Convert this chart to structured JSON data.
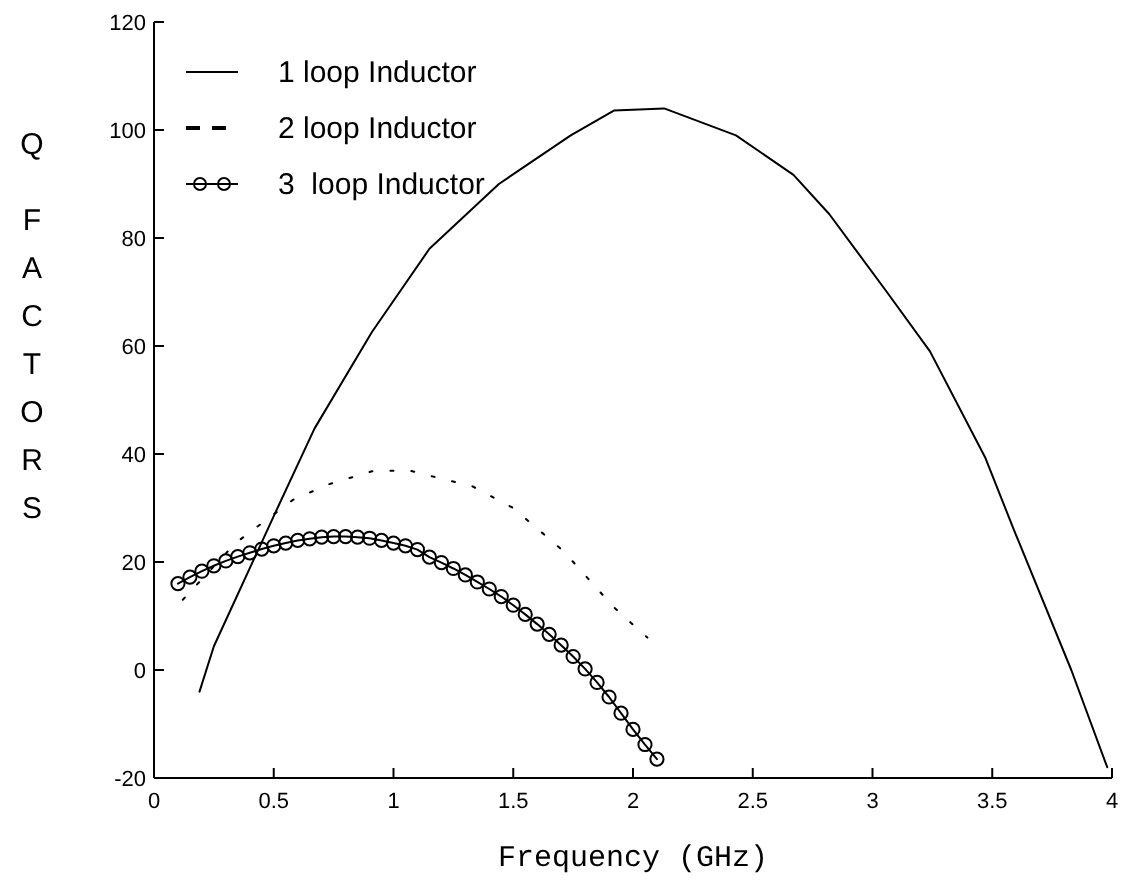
{
  "chart_data": {
    "type": "line",
    "xlabel": "Frequency (GHz)",
    "ylabel": "Q FACTORS",
    "xlim": [
      0,
      4
    ],
    "xticks": [
      0,
      0.5,
      1,
      1.5,
      2,
      2.5,
      3,
      3.5,
      4
    ],
    "ylim": [
      -20,
      120
    ],
    "yticks": [
      -20,
      0,
      20,
      40,
      60,
      80,
      100,
      120
    ],
    "grid": false,
    "legend": "top left",
    "series": [
      {
        "name": "1 loop Inductor",
        "color": "#000000",
        "line_style": "solid",
        "marker": "none",
        "x": [
          0.19,
          0.25,
          0.5,
          0.67,
          0.91,
          1.15,
          1.44,
          1.74,
          1.92,
          2.13,
          2.43,
          2.67,
          2.82,
          3.06,
          3.24,
          3.47,
          3.59,
          3.83,
          3.98
        ],
        "values": [
          -4,
          4.4,
          28.5,
          44.7,
          62.6,
          78,
          90,
          99,
          103.6,
          104,
          99,
          91.7,
          84.4,
          70,
          59,
          39.4,
          26,
          0,
          -18
        ]
      },
      {
        "name": "2 loop Inductor",
        "color": "#000000",
        "line_style": "dotted",
        "marker": "none",
        "x": [
          0.12,
          0.34,
          0.58,
          0.73,
          0.91,
          1.06,
          1.33,
          1.5,
          1.71,
          1.92,
          2.06
        ],
        "values": [
          13,
          23.5,
          31.5,
          34.4,
          36.8,
          37,
          34,
          30,
          22,
          11.6,
          6
        ]
      },
      {
        "name": "3  loop Inductor",
        "color": "#000000",
        "line_style": "solid",
        "marker": "circle",
        "x": [
          0.1,
          0.15,
          0.2,
          0.25,
          0.3,
          0.35,
          0.4,
          0.45,
          0.5,
          0.55,
          0.6,
          0.65,
          0.7,
          0.75,
          0.8,
          0.85,
          0.9,
          0.95,
          1.0,
          1.05,
          1.1,
          1.15,
          1.2,
          1.25,
          1.3,
          1.35,
          1.4,
          1.45,
          1.5,
          1.55,
          1.6,
          1.65,
          1.7,
          1.75,
          1.8,
          1.85,
          1.9,
          1.95,
          2.0,
          2.05,
          2.1
        ],
        "values": [
          16,
          17.2,
          18.3,
          19.3,
          20.2,
          21,
          21.7,
          22.4,
          23,
          23.5,
          24,
          24.3,
          24.6,
          24.7,
          24.7,
          24.6,
          24.4,
          24,
          23.5,
          23,
          22.3,
          20.9,
          19.9,
          18.8,
          17.6,
          16.3,
          15,
          13.6,
          12,
          10.3,
          8.5,
          6.6,
          4.6,
          2.5,
          0.2,
          -2.3,
          -5,
          -8,
          -11,
          -13.8,
          -16.5
        ]
      }
    ]
  }
}
